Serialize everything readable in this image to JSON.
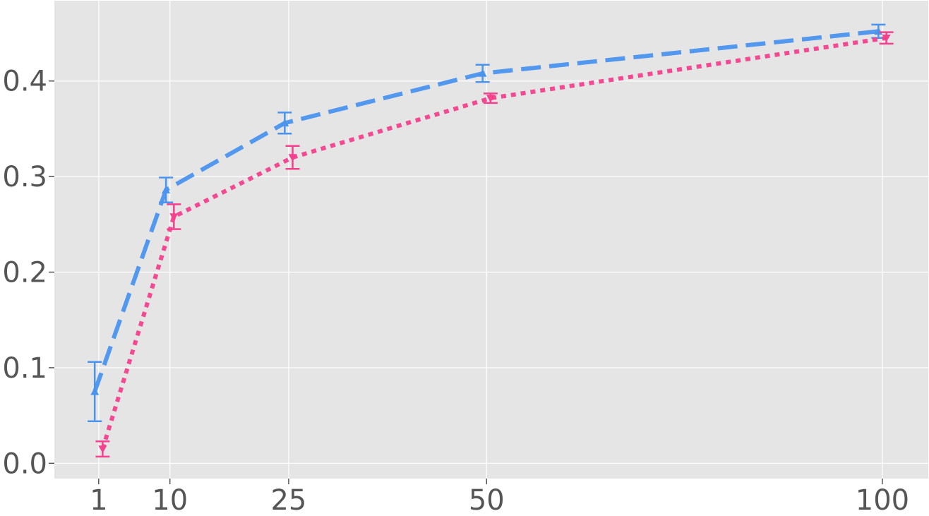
{
  "chart_data": {
    "type": "line",
    "title": "",
    "xlabel": "",
    "ylabel": "",
    "x": [
      1,
      10,
      25,
      50,
      100
    ],
    "xlim": [
      -4.6,
      105.8
    ],
    "ylim": [
      -0.016,
      0.484
    ],
    "xticks": [
      "1",
      "10",
      "25",
      "50",
      "100"
    ],
    "yticks": [
      "0.0",
      "0.1",
      "0.2",
      "0.3",
      "0.4"
    ],
    "grid": true,
    "legend": "none",
    "colors": {
      "background": "#e5e5e5",
      "grid": "#ffffff",
      "ticks": "#555555"
    },
    "series": [
      {
        "color": "#4a94ee",
        "line_style": "dashed",
        "marker": "triangle-up",
        "x_offset": -0.5,
        "values": [
          0.075,
          0.286,
          0.356,
          0.408,
          0.452
        ],
        "errors": [
          0.031,
          0.013,
          0.011,
          0.009,
          0.007
        ]
      },
      {
        "color": "#f4408d",
        "line_style": "dotted",
        "marker": "triangle-down",
        "x_offset": 0.5,
        "values": [
          0.015,
          0.258,
          0.32,
          0.382,
          0.445
        ],
        "errors": [
          0.008,
          0.013,
          0.012,
          0.005,
          0.006
        ]
      }
    ]
  }
}
